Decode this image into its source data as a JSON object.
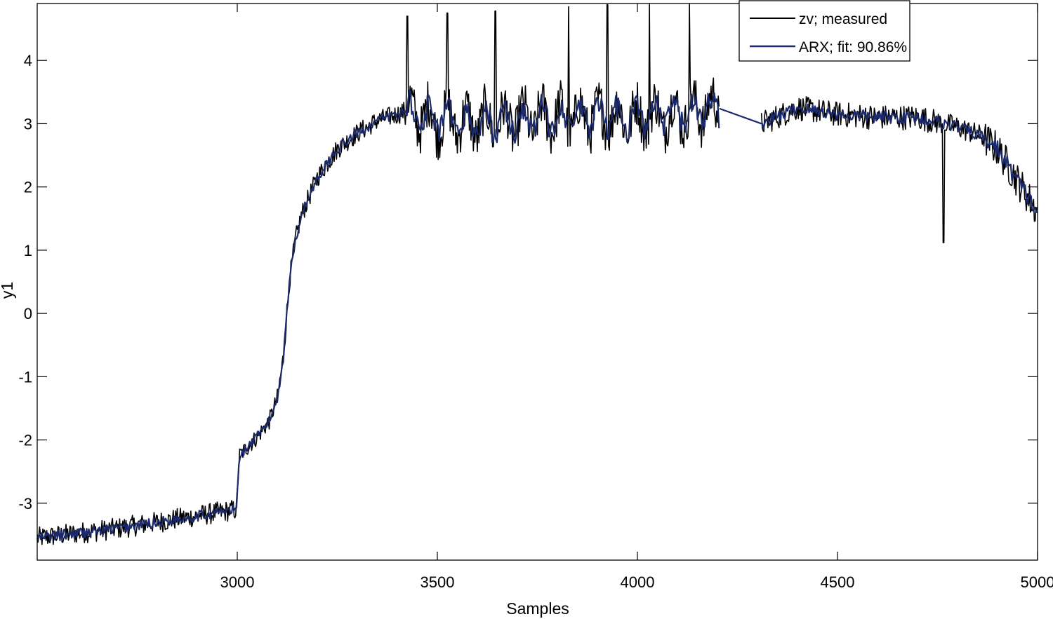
{
  "chart_data": {
    "type": "line",
    "title": "",
    "xlabel": "Samples",
    "ylabel": "y1",
    "xlim": [
      2500,
      5000
    ],
    "ylim": [
      -3.9,
      4.9
    ],
    "xticks": [
      3000,
      3500,
      4000,
      4500,
      5000
    ],
    "xtick_labels": [
      "3000",
      "3500",
      "4000",
      "4500",
      "5000"
    ],
    "yticks": [
      -3,
      -2,
      -1,
      0,
      1,
      2,
      3,
      4
    ],
    "ytick_labels": [
      "-3",
      "-2",
      "-1",
      "0",
      "1",
      "2",
      "3",
      "4"
    ],
    "grid": false,
    "legend_position": "top-right",
    "series": [
      {
        "name": "zv; measured",
        "color": "#000000",
        "breakpoints": {
          "x": [
            2500,
            2700,
            2900,
            2998,
            3005,
            3050,
            3080,
            3100,
            3115,
            3130,
            3145,
            3160,
            3180,
            3200,
            3250,
            3300,
            3350,
            3400,
            3420,
            3500,
            3600,
            3700,
            3800,
            3900,
            4000,
            4100,
            4200,
            4310,
            4400,
            4500,
            4600,
            4700,
            4800,
            4860,
            4900,
            4950,
            5000
          ],
          "y": [
            -3.55,
            -3.4,
            -3.2,
            -3.1,
            -2.25,
            -1.95,
            -1.7,
            -1.35,
            -0.7,
            0.5,
            1.15,
            1.55,
            1.85,
            2.15,
            2.6,
            2.85,
            3.05,
            3.15,
            3.2,
            3.05,
            3.0,
            3.05,
            3.1,
            3.1,
            3.1,
            3.15,
            3.25,
            3.0,
            3.25,
            3.15,
            3.1,
            3.1,
            2.95,
            2.8,
            2.6,
            2.1,
            1.6
          ]
        },
        "gap": [
          4205,
          4310
        ],
        "spikes": [
          {
            "x": 3425,
            "y": 4.7
          },
          {
            "x": 3525,
            "y": 4.75
          },
          {
            "x": 3645,
            "y": 4.78
          },
          {
            "x": 3828,
            "y": 4.85
          },
          {
            "x": 3925,
            "y": 4.88
          },
          {
            "x": 4030,
            "y": 4.9
          },
          {
            "x": 4130,
            "y": 4.9
          },
          {
            "x": 4765,
            "y": 1.12
          }
        ]
      },
      {
        "name": "ARX; fit: 90.86%",
        "color": "#1a2a6c",
        "breakpoints": {
          "x": [
            2500,
            2700,
            2900,
            2998,
            3005,
            3050,
            3080,
            3100,
            3115,
            3130,
            3145,
            3160,
            3180,
            3200,
            3250,
            3300,
            3350,
            3400,
            3420,
            3500,
            3600,
            3700,
            3800,
            3900,
            4000,
            4100,
            4200,
            4310,
            4400,
            4500,
            4600,
            4700,
            4800,
            4860,
            4900,
            4950,
            5000
          ],
          "y": [
            -3.55,
            -3.4,
            -3.2,
            -3.1,
            -2.25,
            -1.95,
            -1.7,
            -1.35,
            -0.7,
            0.5,
            1.15,
            1.55,
            1.85,
            2.15,
            2.6,
            2.85,
            3.05,
            3.15,
            3.2,
            3.05,
            3.0,
            3.05,
            3.1,
            3.1,
            3.1,
            3.15,
            3.25,
            3.0,
            3.25,
            3.15,
            3.1,
            3.1,
            2.95,
            2.8,
            2.6,
            2.1,
            1.6
          ]
        }
      }
    ]
  }
}
